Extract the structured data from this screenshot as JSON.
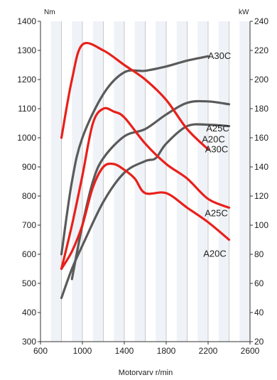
{
  "chart_data": {
    "type": "line",
    "xlabel": "Motorvarv r/min",
    "left_unit": "Nm",
    "right_unit": "kW",
    "xlim": [
      600,
      2600
    ],
    "x_ticks": [
      600,
      1000,
      1400,
      1800,
      2200,
      2600
    ],
    "ylim_left": [
      300,
      1400
    ],
    "y_ticks_left": [
      300,
      400,
      500,
      600,
      700,
      800,
      900,
      1000,
      1100,
      1200,
      1300,
      1400
    ],
    "ylim_right": [
      20,
      240
    ],
    "y_ticks_right": [
      20,
      40,
      60,
      80,
      100,
      120,
      140,
      160,
      180,
      200,
      220,
      240
    ],
    "grid": {
      "vertical": true,
      "horizontal": false
    },
    "colors": {
      "torque": "#e8201a",
      "power": "#5a5a5a",
      "grid": "#c8c8c8",
      "strip": "#dfe6ef"
    },
    "series": [
      {
        "name": "A30C",
        "kind": "power",
        "axis": "right",
        "x": [
          800,
          900,
          1000,
          1200,
          1400,
          1600,
          1800,
          2000,
          2200
        ],
        "values": [
          80,
          130,
          160,
          190,
          205,
          206,
          209,
          213,
          216
        ]
      },
      {
        "name": "A25C",
        "kind": "power",
        "axis": "right",
        "x": [
          900,
          1000,
          1100,
          1200,
          1400,
          1600,
          1800,
          2000,
          2200,
          2400
        ],
        "values": [
          63,
          100,
          130,
          146,
          161,
          166,
          176,
          184,
          185,
          183
        ]
      },
      {
        "name": "A20C",
        "kind": "power",
        "axis": "right",
        "x": [
          800,
          900,
          1000,
          1200,
          1400,
          1600,
          1700,
          1800,
          2000,
          2200,
          2400
        ],
        "values": [
          50,
          70,
          86,
          116,
          136,
          144,
          146,
          156,
          168,
          169,
          168
        ]
      },
      {
        "name": "A30C",
        "kind": "torque",
        "axis": "left",
        "x": [
          800,
          900,
          1000,
          1200,
          1400,
          1600,
          1800,
          2000,
          2200
        ],
        "values": [
          1000,
          1200,
          1320,
          1300,
          1250,
          1200,
          1130,
          1030,
          960
        ]
      },
      {
        "name": "A25C",
        "kind": "torque",
        "axis": "left",
        "x": [
          800,
          900,
          1000,
          1100,
          1200,
          1300,
          1400,
          1600,
          1800,
          2000,
          2200,
          2400
        ],
        "values": [
          550,
          700,
          870,
          1050,
          1100,
          1090,
          1070,
          980,
          910,
          860,
          790,
          760
        ]
      },
      {
        "name": "A20C",
        "kind": "torque",
        "axis": "left",
        "x": [
          800,
          900,
          1000,
          1100,
          1200,
          1300,
          1400,
          1500,
          1600,
          1800,
          2000,
          2200,
          2400
        ],
        "values": [
          550,
          610,
          700,
          830,
          900,
          910,
          890,
          860,
          810,
          810,
          760,
          710,
          650
        ]
      }
    ]
  }
}
